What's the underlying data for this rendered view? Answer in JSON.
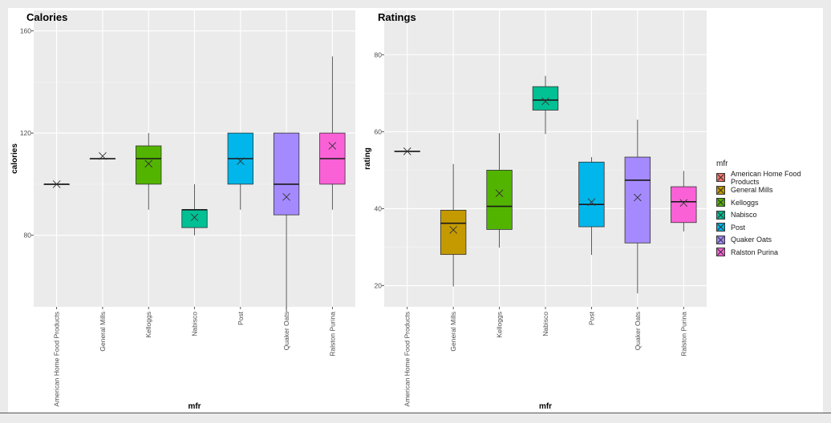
{
  "chart_data": [
    {
      "type": "box",
      "title": "Calories",
      "xlabel": "mfr",
      "ylabel": "calories",
      "ylim": [
        52,
        168
      ],
      "yticks": [
        80,
        120,
        160
      ],
      "categories": [
        "American Home Food Products",
        "General Mills",
        "Kelloggs",
        "Nabisco",
        "Post",
        "Quaker Oats",
        "Ralston Purina"
      ],
      "boxes": [
        {
          "category": "American Home Food Products",
          "min": 100,
          "q1": 100,
          "median": 100,
          "q3": 100,
          "max": 100,
          "mean": 100
        },
        {
          "category": "General Mills",
          "min": 110,
          "q1": 110,
          "median": 110,
          "q3": 110,
          "max": 110,
          "mean": 111
        },
        {
          "category": "Kelloggs",
          "min": 90,
          "q1": 100,
          "median": 110,
          "q3": 115,
          "max": 120,
          "mean": 108
        },
        {
          "category": "Nabisco",
          "min": 80,
          "q1": 83,
          "median": 90,
          "q3": 90,
          "max": 100,
          "mean": 87
        },
        {
          "category": "Post",
          "min": 90,
          "q1": 100,
          "median": 110,
          "q3": 120,
          "max": 120,
          "mean": 109
        },
        {
          "category": "Quaker Oats",
          "min": 50,
          "q1": 88,
          "median": 100,
          "q3": 120,
          "max": 120,
          "mean": 95
        },
        {
          "category": "Ralston Purina",
          "min": 90,
          "q1": 100,
          "median": 110,
          "q3": 120,
          "max": 150,
          "mean": 115
        }
      ]
    },
    {
      "type": "box",
      "title": "Ratings",
      "xlabel": "mfr",
      "ylabel": "rating",
      "ylim": [
        14.5,
        91.5
      ],
      "yticks": [
        20,
        40,
        60,
        80
      ],
      "categories": [
        "American Home Food Products",
        "General Mills",
        "Kelloggs",
        "Nabisco",
        "Post",
        "Quaker Oats",
        "Ralston Purina"
      ],
      "boxes": [
        {
          "category": "American Home Food Products",
          "min": 54.9,
          "q1": 54.9,
          "median": 54.9,
          "q3": 54.9,
          "max": 54.9,
          "mean": 54.9
        },
        {
          "category": "General Mills",
          "min": 19.8,
          "q1": 28.1,
          "median": 36.2,
          "q3": 39.6,
          "max": 51.6,
          "mean": 34.5
        },
        {
          "category": "Kelloggs",
          "min": 29.9,
          "q1": 34.6,
          "median": 40.6,
          "q3": 50.0,
          "max": 59.6,
          "mean": 44.0
        },
        {
          "category": "Nabisco",
          "min": 59.4,
          "q1": 65.6,
          "median": 68.2,
          "q3": 71.7,
          "max": 74.5,
          "mean": 67.9
        },
        {
          "category": "Post",
          "min": 28.0,
          "q1": 35.3,
          "median": 41.1,
          "q3": 52.1,
          "max": 53.4,
          "mean": 41.7
        },
        {
          "category": "Quaker Oats",
          "min": 18.0,
          "q1": 31.1,
          "median": 47.4,
          "q3": 53.4,
          "max": 63.1,
          "mean": 42.9
        },
        {
          "category": "Ralston Purina",
          "min": 34.1,
          "q1": 36.4,
          "median": 41.8,
          "q3": 45.7,
          "max": 49.8,
          "mean": 41.5
        }
      ]
    }
  ],
  "legend": {
    "title": "mfr",
    "items": [
      {
        "label": "American Home Food Products",
        "color": "#F8766D"
      },
      {
        "label": "General Mills",
        "color": "#C49A00"
      },
      {
        "label": "Kelloggs",
        "color": "#53B400"
      },
      {
        "label": "Nabisco",
        "color": "#00C094"
      },
      {
        "label": "Post",
        "color": "#00B6EB"
      },
      {
        "label": "Quaker Oats",
        "color": "#A58AFF"
      },
      {
        "label": "Ralston Purina",
        "color": "#FB61D7"
      }
    ]
  }
}
